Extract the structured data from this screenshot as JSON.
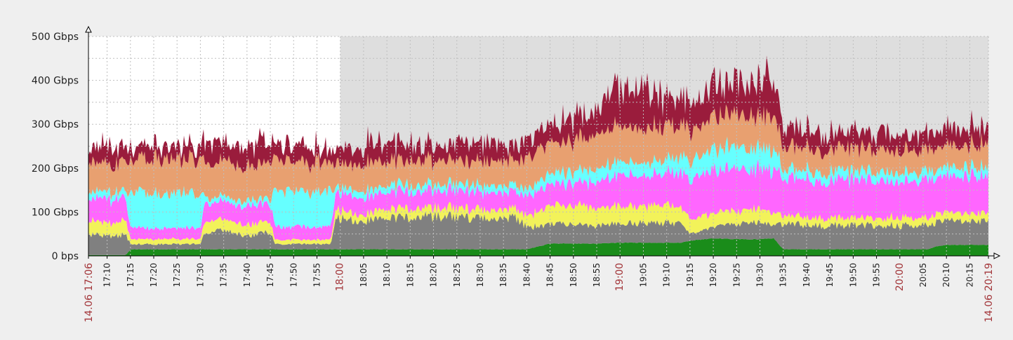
{
  "chart_data": {
    "type": "area",
    "title": "",
    "xlabel": "",
    "ylabel": "",
    "ylim": [
      0,
      500
    ],
    "y_unit": "Gbps",
    "y_ticks": [
      {
        "value": 0,
        "label": "0 bps"
      },
      {
        "value": 100,
        "label": "100 Gbps"
      },
      {
        "value": 200,
        "label": "200 Gbps"
      },
      {
        "value": 300,
        "label": "300 Gbps"
      },
      {
        "value": 400,
        "label": "400 Gbps"
      },
      {
        "value": 500,
        "label": "500 Gbps"
      }
    ],
    "x_range": [
      "17:06",
      "20:19"
    ],
    "x_start_label": "14.06 17:06",
    "x_end_label": "14.06 20:19",
    "x_ticks": [
      "17:10",
      "17:15",
      "17:20",
      "17:25",
      "17:30",
      "17:35",
      "17:40",
      "17:45",
      "17:50",
      "17:55",
      "18:00",
      "18:05",
      "18:10",
      "18:15",
      "18:20",
      "18:25",
      "18:30",
      "18:35",
      "18:40",
      "18:45",
      "18:50",
      "18:55",
      "19:00",
      "19:05",
      "19:10",
      "19:15",
      "19:20",
      "19:25",
      "19:30",
      "19:35",
      "19:40",
      "19:45",
      "19:50",
      "19:55",
      "20:00",
      "20:05",
      "20:10",
      "20:15"
    ],
    "x_major_ticks": [
      "18:00",
      "19:00",
      "20:00"
    ],
    "grid": true,
    "stacked": true,
    "background_before": "#ffffff",
    "background_after": "#dedede",
    "shade_start": "18:00",
    "x": [
      "17:06",
      "17:10",
      "17:14",
      "17:15",
      "17:20",
      "17:25",
      "17:30",
      "17:31",
      "17:35",
      "17:40",
      "17:45",
      "17:46",
      "17:50",
      "17:55",
      "17:58",
      "17:59",
      "18:05",
      "18:10",
      "18:20",
      "18:30",
      "18:38",
      "18:40",
      "18:45",
      "18:50",
      "18:55",
      "19:00",
      "19:05",
      "19:10",
      "19:13",
      "19:15",
      "19:20",
      "19:25",
      "19:30",
      "19:33",
      "19:35",
      "19:40",
      "19:50",
      "20:00",
      "20:06",
      "20:08",
      "20:10",
      "20:19"
    ],
    "series": [
      {
        "color": "#1a8c1a",
        "values": [
          2,
          2,
          2,
          15,
          15,
          15,
          15,
          15,
          15,
          15,
          15,
          15,
          15,
          15,
          15,
          15,
          15,
          15,
          15,
          15,
          15,
          15,
          28,
          28,
          28,
          30,
          30,
          30,
          30,
          35,
          40,
          38,
          38,
          40,
          15,
          15,
          15,
          15,
          15,
          22,
          25,
          25
        ]
      },
      {
        "color": "#808080",
        "values": [
          45,
          45,
          45,
          12,
          12,
          12,
          12,
          40,
          42,
          30,
          40,
          12,
          12,
          12,
          12,
          70,
          65,
          70,
          75,
          72,
          70,
          50,
          45,
          45,
          40,
          45,
          45,
          45,
          45,
          15,
          25,
          35,
          40,
          30,
          60,
          55,
          55,
          55,
          55,
          55,
          55,
          55
        ]
      },
      {
        "color": "#f2f25a",
        "values": [
          30,
          30,
          30,
          12,
          12,
          12,
          12,
          25,
          25,
          25,
          25,
          10,
          10,
          10,
          10,
          20,
          15,
          20,
          20,
          20,
          20,
          25,
          40,
          45,
          40,
          40,
          40,
          40,
          35,
          35,
          30,
          30,
          30,
          30,
          18,
          18,
          18,
          18,
          18,
          18,
          18,
          18
        ]
      },
      {
        "color": "#ff66ff",
        "values": [
          55,
          55,
          55,
          25,
          25,
          25,
          25,
          40,
          40,
          40,
          40,
          30,
          30,
          30,
          30,
          40,
          40,
          40,
          40,
          40,
          40,
          45,
          50,
          50,
          60,
          70,
          70,
          70,
          80,
          90,
          100,
          95,
          90,
          95,
          85,
          85,
          85,
          85,
          85,
          85,
          85,
          85
        ]
      },
      {
        "color": "#66ffff",
        "values": [
          15,
          15,
          15,
          80,
          80,
          80,
          80,
          12,
          12,
          12,
          12,
          80,
          80,
          80,
          80,
          12,
          15,
          15,
          15,
          15,
          15,
          15,
          25,
          25,
          30,
          30,
          30,
          30,
          40,
          40,
          50,
          50,
          45,
          45,
          20,
          20,
          20,
          20,
          20,
          20,
          20,
          20
        ]
      },
      {
        "color": "#e8a070",
        "values": [
          65,
          65,
          65,
          80,
          80,
          80,
          80,
          80,
          80,
          80,
          80,
          70,
          70,
          70,
          70,
          55,
          60,
          55,
          55,
          55,
          58,
          70,
          70,
          75,
          75,
          80,
          80,
          75,
          70,
          70,
          75,
          72,
          75,
          75,
          50,
          50,
          50,
          50,
          50,
          50,
          50,
          50
        ]
      },
      {
        "color": "#9a1c3c",
        "values": [
          40,
          45,
          30,
          30,
          30,
          30,
          30,
          45,
          45,
          45,
          55,
          35,
          35,
          35,
          35,
          35,
          45,
          40,
          35,
          40,
          35,
          45,
          50,
          55,
          60,
          80,
          90,
          70,
          55,
          60,
          70,
          80,
          80,
          90,
          45,
          45,
          40,
          40,
          40,
          40,
          40,
          40
        ]
      }
    ]
  }
}
